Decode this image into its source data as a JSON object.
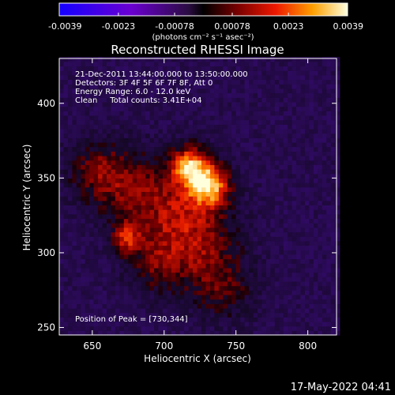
{
  "chart_data": {
    "type": "heatmap",
    "title": "Reconstructed RHESSI Image",
    "xlabel": "Heliocentric X (arcsec)",
    "ylabel": "Heliocentric Y (arcsec)",
    "xlim": [
      627,
      820
    ],
    "ylim": [
      245,
      430
    ],
    "x_ticks": [
      650,
      700,
      750,
      800
    ],
    "y_ticks": [
      250,
      300,
      350,
      400
    ],
    "colorbar": {
      "colormap": "hot-diverging",
      "range": [
        -0.0039,
        0.0039
      ],
      "ticks": [
        -0.0039,
        -0.0023,
        -0.00078,
        0.00078,
        0.0023,
        0.0039
      ],
      "tick_labels": [
        "-0.0039",
        "-0.0023",
        "-0.00078",
        "0.00078",
        "0.0023",
        "0.0039"
      ],
      "unit_label": "(photons cm⁻² s⁻¹ asec⁻²)"
    },
    "annotations": [
      "21-Dec-2011 13:44:00.000 to 13:50:00.000",
      "Detectors: 3F 4F 5F 6F 7F 8F, Att 0",
      "Energy Range: 6.0 - 12.0 keV",
      "Clean     Total counts: 3.41E+04"
    ],
    "peak_label": "Position of Peak = [730,344]",
    "peak": [
      730,
      344
    ],
    "sources": [
      {
        "x": 730,
        "y": 344,
        "amp": 0.0039,
        "sigma": 10
      },
      {
        "x": 716,
        "y": 357,
        "amp": 0.0036,
        "sigma": 9
      },
      {
        "x": 708,
        "y": 325,
        "amp": 0.0022,
        "sigma": 22
      },
      {
        "x": 672,
        "y": 309,
        "amp": 0.0024,
        "sigma": 7
      },
      {
        "x": 670,
        "y": 345,
        "amp": 0.0016,
        "sigma": 18
      },
      {
        "x": 650,
        "y": 355,
        "amp": 0.0013,
        "sigma": 14
      },
      {
        "x": 725,
        "y": 295,
        "amp": 0.0014,
        "sigma": 20
      },
      {
        "x": 742,
        "y": 272,
        "amp": 0.0011,
        "sigma": 15
      },
      {
        "x": 690,
        "y": 290,
        "amp": 0.0012,
        "sigma": 14
      }
    ]
  },
  "footer": {
    "timestamp": "17-May-2022 04:41"
  }
}
